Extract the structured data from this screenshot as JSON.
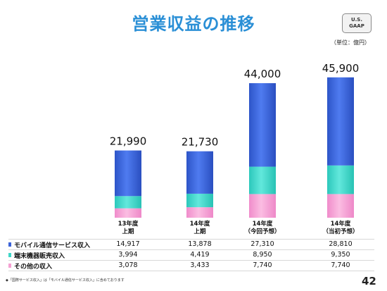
{
  "slide": {
    "title": "営業収益の推移",
    "badge": [
      "U.S.",
      "GAAP"
    ],
    "unit": "（単位：億円）",
    "footnote": "◆「国際サービス収入」は「モバイル通信サービス収入」に含めております",
    "page_number": "42"
  },
  "colors": {
    "mobile": "#3b63d8",
    "device": "#3fd6c8",
    "other": "#f5a0d2",
    "title": "#2a8fd6"
  },
  "chart_data": {
    "type": "bar",
    "stacked": true,
    "title": "営業収益の推移",
    "categories": [
      [
        "13年度",
        "上期"
      ],
      [
        "14年度",
        "上期"
      ],
      [
        "14年度",
        "（今回予想）"
      ],
      [
        "14年度",
        "（当初予想）"
      ]
    ],
    "totals": [
      "21,990",
      "21,730",
      "44,000",
      "45,900"
    ],
    "total_values": [
      21990,
      21730,
      44000,
      45900
    ],
    "series": [
      {
        "name": "その他の収入",
        "color": "#f5a0d2",
        "values": [
          3078,
          3433,
          7740,
          7740
        ],
        "labels": [
          "3,078",
          "3,433",
          "7,740",
          "7,740"
        ]
      },
      {
        "name": "端末機器販売収入",
        "color": "#3fd6c8",
        "values": [
          3994,
          4419,
          8950,
          9350
        ],
        "labels": [
          "3,994",
          "4,419",
          "8,950",
          "9,350"
        ]
      },
      {
        "name": "モバイル通信サービス収入",
        "color": "#3b63d8",
        "values": [
          14917,
          13878,
          27310,
          28810
        ],
        "labels": [
          "14,917",
          "13,878",
          "27,310",
          "28,810"
        ]
      }
    ],
    "ylim": [
      0,
      50000
    ],
    "grid": false,
    "legend": "table-below"
  },
  "table": {
    "rows": [
      {
        "label": "モバイル通信サービス収入",
        "color": "#3b63d8",
        "cells": [
          "14,917",
          "13,878",
          "27,310",
          "28,810"
        ]
      },
      {
        "label": "端末機器販売収入",
        "color": "#3fd6c8",
        "cells": [
          "3,994",
          "4,419",
          "8,950",
          "9,350"
        ]
      },
      {
        "label": "その他の収入",
        "color": "#f5a0d2",
        "cells": [
          "3,078",
          "3,433",
          "7,740",
          "7,740"
        ]
      }
    ]
  }
}
